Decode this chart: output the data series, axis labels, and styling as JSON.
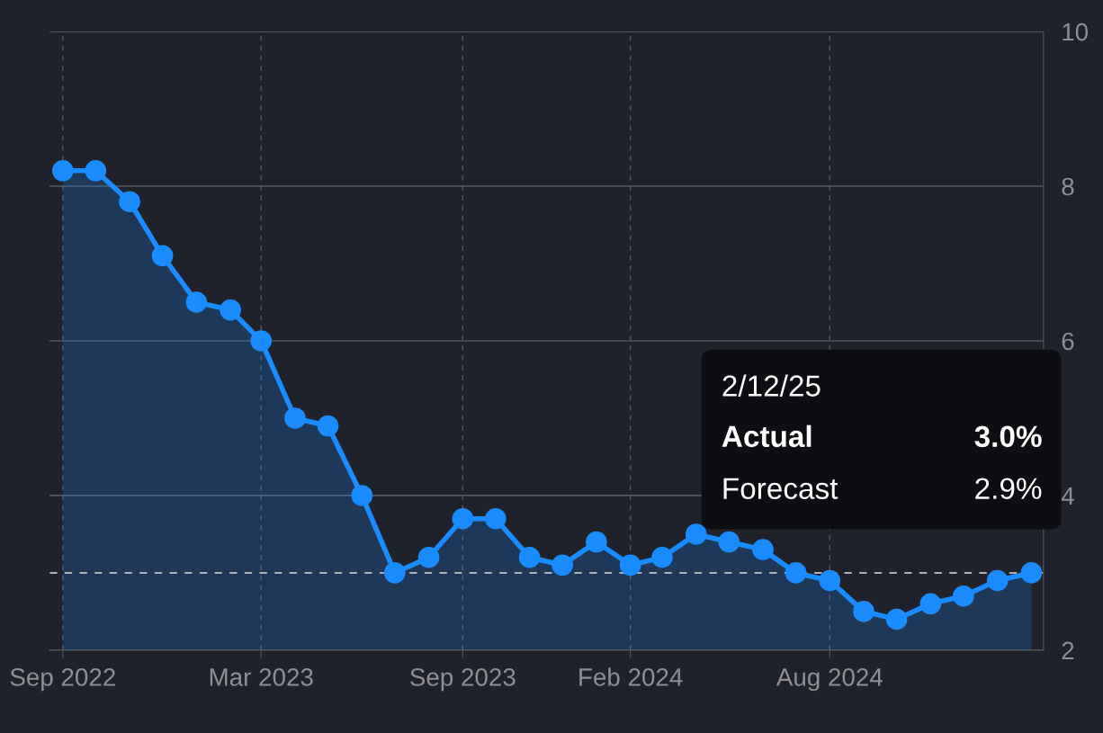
{
  "chart_data": {
    "type": "area",
    "x": [
      "2022-09",
      "2022-10",
      "2022-11",
      "2022-12",
      "2023-01",
      "2023-02",
      "2023-03",
      "2023-04",
      "2023-05",
      "2023-06",
      "2023-07",
      "2023-08",
      "2023-09",
      "2023-10",
      "2023-11",
      "2023-12",
      "2024-01",
      "2024-02",
      "2024-03",
      "2024-04",
      "2024-05",
      "2024-06",
      "2024-07",
      "2024-08",
      "2024-09",
      "2024-10",
      "2024-11",
      "2024-12",
      "2025-01",
      "2025-02"
    ],
    "series": [
      {
        "color": "#1a8cff",
        "values": [
          8.2,
          8.2,
          7.8,
          7.1,
          6.5,
          6.4,
          6.0,
          5.0,
          4.9,
          4.0,
          3.0,
          3.2,
          3.7,
          3.7,
          3.2,
          3.1,
          3.4,
          3.1,
          3.2,
          3.5,
          3.4,
          3.3,
          3.0,
          2.9,
          2.5,
          2.4,
          2.6,
          2.7,
          2.9,
          3.0
        ]
      }
    ],
    "xlim": [
      "2022-08-20",
      "2025-02-12"
    ],
    "xticks": [
      {
        "value": "2022-09",
        "label": "Sep 2022"
      },
      {
        "value": "2023-03",
        "label": "Mar 2023"
      },
      {
        "value": "2023-09",
        "label": "Sep 2023"
      },
      {
        "value": "2024-02",
        "label": "Feb 2024"
      },
      {
        "value": "2024-08",
        "label": "Aug 2024"
      }
    ],
    "ylim": [
      2,
      10
    ],
    "yticks": [
      2,
      4,
      6,
      8,
      10
    ],
    "grid": true,
    "marker": "circle",
    "line_style": "solid",
    "legend": false,
    "ref_lines": [
      {
        "axis": "y",
        "value": 3.0,
        "color": "#aeb0b6",
        "line_style": "dashed"
      }
    ],
    "annotations": [
      "2/12/25",
      "Actual",
      "3.0%",
      "Forecast",
      "2.9%"
    ]
  }
}
